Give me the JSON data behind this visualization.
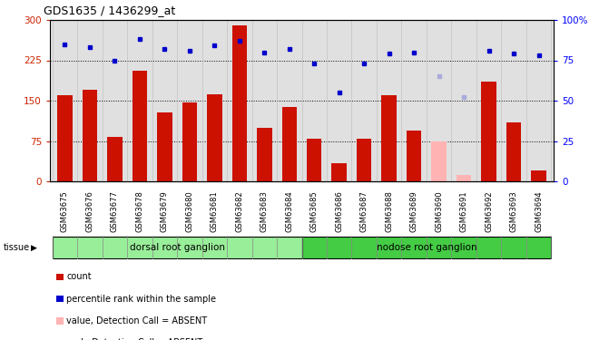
{
  "title": "GDS1635 / 1436299_at",
  "samples": [
    "GSM63675",
    "GSM63676",
    "GSM63677",
    "GSM63678",
    "GSM63679",
    "GSM63680",
    "GSM63681",
    "GSM63682",
    "GSM63683",
    "GSM63684",
    "GSM63685",
    "GSM63686",
    "GSM63687",
    "GSM63688",
    "GSM63689",
    "GSM63690",
    "GSM63691",
    "GSM63692",
    "GSM63693",
    "GSM63694"
  ],
  "bar_values": [
    160,
    170,
    82,
    205,
    128,
    147,
    161,
    290,
    100,
    138,
    80,
    33,
    80,
    160,
    95,
    75,
    12,
    185,
    110,
    20
  ],
  "bar_colors": [
    "#cc1100",
    "#cc1100",
    "#cc1100",
    "#cc1100",
    "#cc1100",
    "#cc1100",
    "#cc1100",
    "#cc1100",
    "#cc1100",
    "#cc1100",
    "#cc1100",
    "#cc1100",
    "#cc1100",
    "#cc1100",
    "#cc1100",
    "#ffb3b3",
    "#ffb3b3",
    "#cc1100",
    "#cc1100",
    "#cc1100"
  ],
  "dot_values": [
    85,
    83,
    75,
    88,
    82,
    81,
    84,
    87,
    80,
    82,
    73,
    55,
    73,
    79,
    80,
    65,
    52,
    81,
    79,
    78
  ],
  "dot_colors": [
    "#0000cc",
    "#0000cc",
    "#0000cc",
    "#0000cc",
    "#0000cc",
    "#0000cc",
    "#0000cc",
    "#0000cc",
    "#0000cc",
    "#0000cc",
    "#0000cc",
    "#0000cc",
    "#0000cc",
    "#0000cc",
    "#0000cc",
    "#aaaadd",
    "#aaaadd",
    "#0000cc",
    "#0000cc",
    "#0000cc"
  ],
  "tissue_groups": [
    {
      "label": "dorsal root ganglion",
      "start": 0,
      "end": 9,
      "color": "#99ee99"
    },
    {
      "label": "nodose root ganglion",
      "start": 10,
      "end": 19,
      "color": "#44cc44"
    }
  ],
  "ylim_left": [
    0,
    300
  ],
  "ylim_right": [
    0,
    100
  ],
  "yticks_left": [
    0,
    75,
    150,
    225,
    300
  ],
  "yticks_right": [
    0,
    25,
    50,
    75,
    100
  ],
  "legend_items": [
    {
      "label": "count",
      "color": "#cc1100"
    },
    {
      "label": "percentile rank within the sample",
      "color": "#0000cc"
    },
    {
      "label": "value, Detection Call = ABSENT",
      "color": "#ffb3b3"
    },
    {
      "label": "rank, Detection Call = ABSENT",
      "color": "#aaaadd"
    }
  ],
  "bg_color": "#e0e0e0"
}
